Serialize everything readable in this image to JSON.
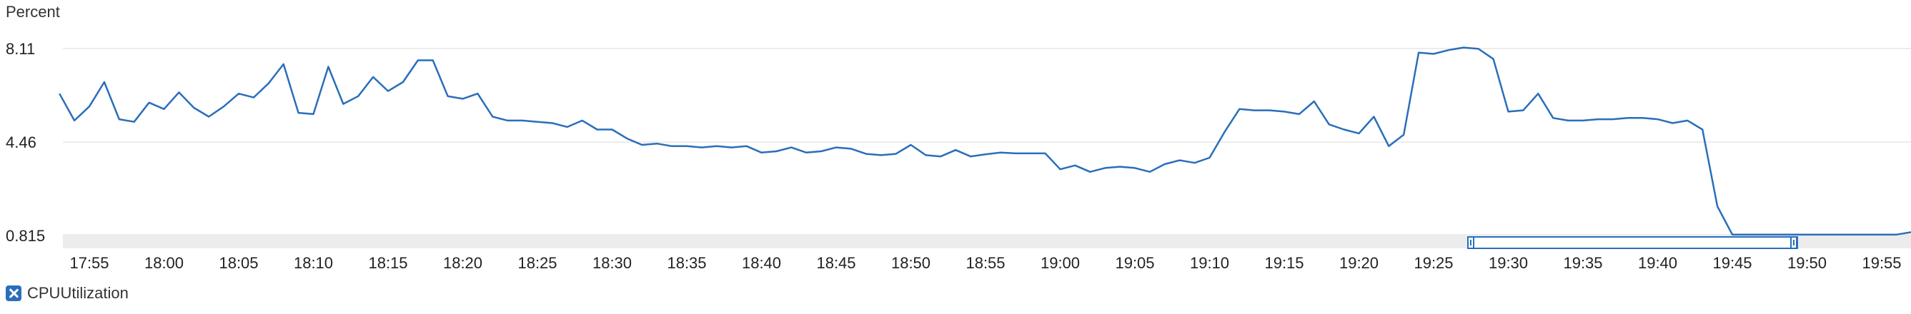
{
  "chart_data": {
    "type": "line",
    "ylabel": "Percent",
    "ytick_labels": [
      "8.11",
      "4.46",
      "0.815"
    ],
    "ytick_values": [
      8.11,
      4.46,
      0.815
    ],
    "ylim": [
      0.815,
      8.11
    ],
    "xtick_labels": [
      "17:55",
      "18:00",
      "18:05",
      "18:10",
      "18:15",
      "18:20",
      "18:25",
      "18:30",
      "18:35",
      "18:40",
      "18:45",
      "18:50",
      "18:55",
      "19:00",
      "19:05",
      "19:10",
      "19:15",
      "19:20",
      "19:25",
      "19:30",
      "19:35",
      "19:40",
      "19:45",
      "19:50",
      "19:55"
    ],
    "x_start": "17:55",
    "x_interval_minutes": 1,
    "grid": true,
    "legend_position": "bottom-left",
    "series": [
      {
        "name": "CPUUtilization",
        "color": "#2a6ebb",
        "values": [
          6.35,
          5.3,
          5.85,
          6.8,
          5.35,
          5.25,
          6.0,
          5.75,
          6.4,
          5.8,
          5.45,
          5.85,
          6.35,
          6.2,
          6.75,
          7.5,
          5.6,
          5.55,
          7.4,
          5.95,
          6.25,
          7.0,
          6.45,
          6.8,
          7.65,
          7.65,
          6.25,
          6.15,
          6.35,
          5.45,
          5.3,
          5.3,
          5.25,
          5.2,
          5.05,
          5.3,
          4.95,
          4.95,
          4.6,
          4.35,
          4.4,
          4.3,
          4.3,
          4.25,
          4.3,
          4.25,
          4.3,
          4.05,
          4.1,
          4.25,
          4.05,
          4.1,
          4.25,
          4.2,
          4.0,
          3.95,
          4.0,
          4.35,
          3.95,
          3.9,
          4.15,
          3.9,
          3.98,
          4.05,
          4.02,
          4.02,
          4.02,
          3.4,
          3.55,
          3.3,
          3.45,
          3.5,
          3.45,
          3.3,
          3.6,
          3.75,
          3.65,
          3.85,
          4.85,
          5.75,
          5.7,
          5.7,
          5.65,
          5.55,
          6.05,
          5.15,
          4.95,
          4.8,
          5.45,
          4.3,
          4.75,
          7.95,
          7.9,
          8.05,
          8.15,
          8.1,
          7.7,
          5.65,
          5.7,
          6.35,
          5.4,
          5.3,
          5.3,
          5.35,
          5.35,
          5.4,
          5.4,
          5.35,
          5.2,
          5.3,
          4.95,
          1.95,
          0.85,
          0.85,
          0.85,
          0.85,
          0.85,
          0.85,
          0.85,
          0.85,
          0.85,
          0.85,
          0.85,
          0.85,
          0.95,
          0.88,
          0.88
        ]
      }
    ]
  },
  "legend": {
    "label": "CPUUtilization"
  }
}
